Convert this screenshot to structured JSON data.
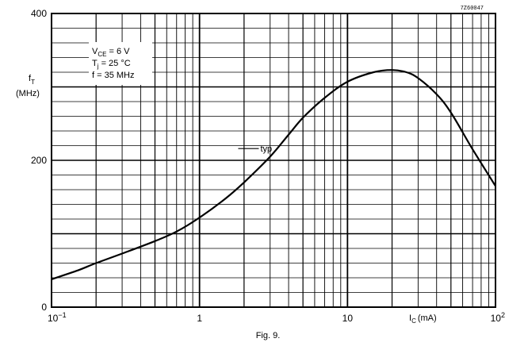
{
  "chart_data": {
    "type": "line",
    "code": "7Z60047",
    "caption": "Fig. 9.",
    "ylabel": {
      "symbol": "f",
      "sub": "T",
      "unit": "(MHz)"
    },
    "xlabel": {
      "symbol": "I",
      "sub": "C",
      "unit": "(mA)"
    },
    "xscale": "log",
    "xlim": [
      0.1,
      100
    ],
    "ylim": [
      0,
      400
    ],
    "x_ticks": [
      {
        "value": 0.1,
        "base": "10",
        "exp": "−1"
      },
      {
        "value": 1,
        "base": "1",
        "exp": ""
      },
      {
        "value": 10,
        "base": "10",
        "exp": ""
      },
      {
        "value": 100,
        "base": "10",
        "exp": "2"
      }
    ],
    "y_ticks": [
      {
        "value": 0,
        "label": "0"
      },
      {
        "value": 200,
        "label": "200"
      },
      {
        "value": 400,
        "label": "400"
      }
    ],
    "grid": true,
    "conditions": [
      {
        "main": "V",
        "sub": "CE",
        "rest": " = 6 V"
      },
      {
        "main": "T",
        "sub": "j",
        "rest": " = 25 °C"
      },
      {
        "main": "f",
        "sub": "",
        "rest": " = 35 MHz"
      }
    ],
    "series": [
      {
        "name": "typ",
        "x": [
          0.1,
          0.15,
          0.2,
          0.3,
          0.5,
          0.7,
          1,
          1.5,
          2,
          3,
          4,
          5,
          7,
          10,
          15,
          20,
          25,
          30,
          40,
          50,
          70,
          100
        ],
        "y": [
          38,
          50,
          60,
          73,
          90,
          103,
          122,
          148,
          170,
          205,
          235,
          258,
          285,
          307,
          320,
          323,
          320,
          312,
          290,
          265,
          215,
          165
        ]
      }
    ],
    "annotations": [
      {
        "text": "typ",
        "series": "typ",
        "x": 3.3
      }
    ]
  }
}
